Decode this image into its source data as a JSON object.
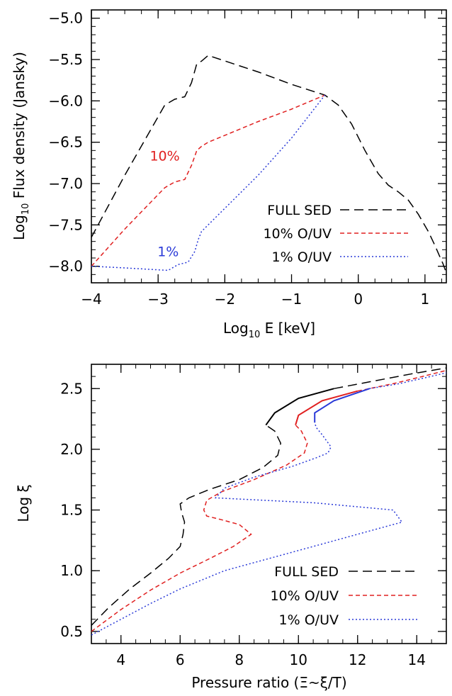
{
  "chart_data": [
    {
      "type": "line",
      "xlabel_main": "Log",
      "xlabel_sub": "10",
      "xlabel_rest": " E [keV]",
      "ylabel_main": "Log",
      "ylabel_sub": "10",
      "ylabel_rest": " Flux density (Jansky)",
      "xlim": [
        -4,
        1.32
      ],
      "ylim": [
        -8.2,
        -4.9
      ],
      "xticks": [
        -4,
        -3,
        -2,
        -1,
        0,
        1
      ],
      "xtick_labels": [
        "−4",
        "−3",
        "−2",
        "−1",
        "0",
        "1"
      ],
      "yticks": [
        -8.0,
        -7.5,
        -7.0,
        -6.5,
        -6.0,
        -5.5,
        -5.0
      ],
      "ytick_labels": [
        "−8.0",
        "−7.5",
        "−7.0",
        "−6.5",
        "−6.0",
        "−5.5",
        "−5.0"
      ],
      "legend_position": "bottom-right",
      "annotations": [
        {
          "text": "10%",
          "x": -2.9,
          "y": -6.72,
          "color": "#e02020"
        },
        {
          "text": "1%",
          "x": -2.85,
          "y": -7.88,
          "color": "#2a3ad8"
        }
      ],
      "series": [
        {
          "name": "FULL SED",
          "color": "#000000",
          "dash": "13,7",
          "x": [
            -4.0,
            -3.5,
            -2.9,
            -2.75,
            -2.6,
            -2.5,
            -2.42,
            -2.35,
            -2.25,
            -1.5,
            -1.0,
            -0.5,
            -0.3,
            -0.1,
            0.1,
            0.3,
            0.45,
            0.6,
            0.75,
            0.9,
            1.05,
            1.15,
            1.22,
            1.27,
            1.32
          ],
          "y": [
            -7.65,
            -6.9,
            -6.05,
            -5.98,
            -5.95,
            -5.78,
            -5.55,
            -5.52,
            -5.45,
            -5.65,
            -5.8,
            -5.93,
            -6.05,
            -6.28,
            -6.6,
            -6.88,
            -7.02,
            -7.1,
            -7.2,
            -7.37,
            -7.58,
            -7.75,
            -7.88,
            -7.97,
            -8.08
          ]
        },
        {
          "name": "10% O/UV",
          "color": "#e02020",
          "dash": "6,4",
          "x": [
            -4.0,
            -3.5,
            -2.9,
            -2.75,
            -2.6,
            -2.5,
            -2.42,
            -2.35,
            -2.25,
            -1.5,
            -1.0,
            -0.5
          ],
          "y": [
            -8.0,
            -7.55,
            -7.05,
            -6.98,
            -6.95,
            -6.78,
            -6.6,
            -6.55,
            -6.5,
            -6.25,
            -6.1,
            -5.93
          ]
        },
        {
          "name": "1% O/UV",
          "color": "#2a3ad8",
          "dash": "2,3",
          "x": [
            -4.0,
            -3.5,
            -2.85,
            -2.7,
            -2.55,
            -2.45,
            -2.4,
            -2.35,
            -2.25,
            -1.5,
            -1.0,
            -0.5
          ],
          "y": [
            -8.0,
            -8.02,
            -8.05,
            -7.98,
            -7.95,
            -7.82,
            -7.68,
            -7.58,
            -7.5,
            -6.9,
            -6.45,
            -5.93
          ]
        }
      ]
    },
    {
      "type": "line",
      "xlabel": "Pressure ratio (Ξ~ξ/T)",
      "ylabel": "Log ξ",
      "xlim": [
        3,
        15
      ],
      "ylim": [
        0.4,
        2.7
      ],
      "xticks": [
        4,
        6,
        8,
        10,
        12,
        14
      ],
      "xtick_labels": [
        "4",
        "6",
        "8",
        "10",
        "12",
        "14"
      ],
      "yticks": [
        0.5,
        1.0,
        1.5,
        2.0,
        2.5
      ],
      "ytick_labels": [
        "0.5",
        "1.0",
        "1.5",
        "2.0",
        "2.5"
      ],
      "legend_position": "bottom-right",
      "series": [
        {
          "name": "FULL SED",
          "color": "#000000",
          "dash": "13,7",
          "x": [
            3.0,
            3.6,
            4.3,
            5.0,
            5.6,
            6.0,
            6.1,
            6.15,
            6.05,
            6.0,
            6.3,
            7.0,
            8.0,
            8.8,
            9.3,
            9.4,
            9.2,
            8.9
          ],
          "y": [
            0.55,
            0.7,
            0.85,
            0.98,
            1.1,
            1.2,
            1.3,
            1.4,
            1.48,
            1.55,
            1.6,
            1.67,
            1.75,
            1.85,
            1.95,
            2.05,
            2.15,
            2.2
          ]
        },
        {
          "name": "FULL SED (upper)",
          "color": "#000000",
          "dash": "13,7",
          "x": [
            11.2,
            12.5,
            13.8,
            15.0
          ],
          "y": [
            2.5,
            2.56,
            2.62,
            2.67
          ]
        },
        {
          "name": "10% O/UV",
          "color": "#e02020",
          "dash": "6,4",
          "x": [
            3.0,
            4.0,
            5.0,
            6.0,
            7.0,
            7.8,
            8.4,
            8.0,
            7.4,
            6.9,
            6.8,
            6.9,
            7.4,
            8.5,
            9.6,
            10.2,
            10.3,
            10.1,
            9.9
          ],
          "y": [
            0.5,
            0.68,
            0.84,
            0.98,
            1.1,
            1.2,
            1.3,
            1.38,
            1.42,
            1.45,
            1.5,
            1.58,
            1.65,
            1.75,
            1.87,
            1.97,
            2.05,
            2.15,
            2.2
          ]
        },
        {
          "name": "10% O/UV (upper)",
          "color": "#e02020",
          "dash": "6,4",
          "x": [
            12.0,
            13.2,
            14.2,
            15.0
          ],
          "y": [
            2.48,
            2.54,
            2.6,
            2.65
          ]
        },
        {
          "name": "1% O/UV",
          "color": "#2a3ad8",
          "dash": "2,3",
          "x": [
            3.0,
            4.0,
            5.0,
            6.0,
            7.5,
            9.0,
            10.5,
            12.0,
            13.2,
            13.5,
            13.2,
            10.5,
            7.2,
            7.5,
            8.5,
            9.8,
            10.6,
            11.0,
            11.1,
            10.8,
            10.6,
            10.55
          ],
          "y": [
            0.47,
            0.6,
            0.73,
            0.85,
            1.0,
            1.1,
            1.2,
            1.3,
            1.38,
            1.4,
            1.5,
            1.56,
            1.6,
            1.68,
            1.77,
            1.86,
            1.93,
            1.97,
            2.02,
            2.12,
            2.18,
            2.22
          ]
        },
        {
          "name": "1% O/UV (upper)",
          "color": "#2a3ad8",
          "dash": "2,3",
          "x": [
            12.4,
            13.4,
            14.3,
            15.0
          ],
          "y": [
            2.5,
            2.54,
            2.59,
            2.63
          ]
        },
        {
          "name": "FULL SED (solid)",
          "color": "#000000",
          "dash": "",
          "x": [
            8.9,
            9.2,
            10.0,
            11.2
          ],
          "y": [
            2.2,
            2.3,
            2.42,
            2.5
          ]
        },
        {
          "name": "10% O/UV (solid)",
          "color": "#e02020",
          "dash": "",
          "x": [
            9.9,
            10.0,
            10.8,
            12.0
          ],
          "y": [
            2.2,
            2.28,
            2.4,
            2.48
          ]
        },
        {
          "name": "1% O/UV (solid)",
          "color": "#2a3ad8",
          "dash": "",
          "x": [
            10.55,
            10.55,
            11.2,
            12.4
          ],
          "y": [
            2.22,
            2.3,
            2.4,
            2.5
          ]
        }
      ]
    }
  ],
  "legend": [
    {
      "label": "FULL SED",
      "color": "#000000",
      "dash": "13,7"
    },
    {
      "label": "10% O/UV",
      "color": "#e02020",
      "dash": "6,4"
    },
    {
      "label": "1% O/UV",
      "color": "#2a3ad8",
      "dash": "2,3"
    }
  ]
}
